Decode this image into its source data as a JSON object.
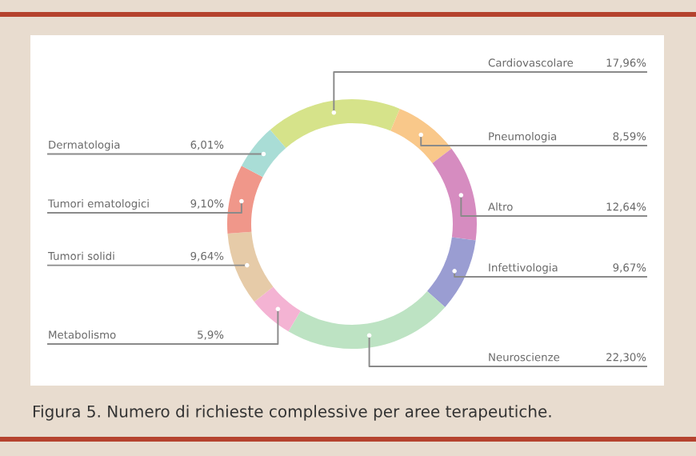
{
  "chart_data": {
    "type": "donut",
    "title": "Figura 5. Numero di richieste complessive per aree terapeutiche.",
    "categories": [
      "Cardiovascolare",
      "Pneumologia",
      "Altro",
      "Infettivologia",
      "Neuroscienze",
      "Metabolismo",
      "Tumori solidi",
      "Tumori ematologici",
      "Dermatologia"
    ],
    "values": [
      17.96,
      8.59,
      12.64,
      9.67,
      22.3,
      5.9,
      9.64,
      9.1,
      6.01
    ],
    "value_labels": [
      "17,96%",
      "8,59%",
      "12,64%",
      "9,67%",
      "22,30%",
      "5,9%",
      "9,64%",
      "9,10%",
      "6,01%"
    ],
    "colors": [
      "#d6e38a",
      "#f9c88a",
      "#d68cc0",
      "#9a9dd2",
      "#bde3c3",
      "#f4b3d3",
      "#e6cba8",
      "#f0978a",
      "#a9ddd6"
    ],
    "legend": false
  }
}
